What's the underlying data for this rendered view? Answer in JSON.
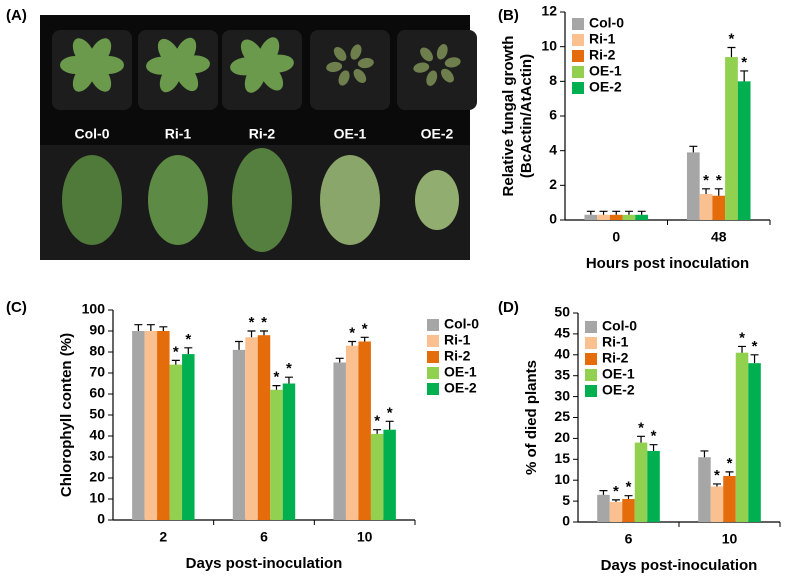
{
  "image_panel": {
    "panel_label": "(A)",
    "labels": [
      "Col-0",
      "Ri-1",
      "Ri-2",
      "OE-1",
      "OE-2"
    ]
  },
  "chart_data": [
    {
      "type": "bar",
      "panel_label": "(B)",
      "ylabel": [
        "Relative fungal growth",
        "(BcActin/AtActin)"
      ],
      "xlabel": "Hours post inoculation",
      "categories": [
        "0",
        "48"
      ],
      "ylim": [
        0,
        12
      ],
      "yticks": [
        0,
        2,
        4,
        6,
        8,
        10,
        12
      ],
      "legend": "upper left",
      "marker": "*",
      "series": [
        {
          "name": "Col-0",
          "color": "#a6a6a6",
          "values": [
            0.3,
            3.9
          ],
          "errors": [
            0.2,
            0.35
          ],
          "significant": [
            false,
            false
          ]
        },
        {
          "name": "Ri-1",
          "color": "#fac090",
          "values": [
            0.3,
            1.5
          ],
          "errors": [
            0.2,
            0.3
          ],
          "significant": [
            false,
            true
          ]
        },
        {
          "name": "Ri-2",
          "color": "#e46c0a",
          "values": [
            0.3,
            1.4
          ],
          "errors": [
            0.2,
            0.4
          ],
          "significant": [
            false,
            true
          ]
        },
        {
          "name": "OE-1",
          "color": "#92d050",
          "values": [
            0.3,
            9.4
          ],
          "errors": [
            0.2,
            0.55
          ],
          "significant": [
            false,
            true
          ]
        },
        {
          "name": "OE-2",
          "color": "#00b050",
          "values": [
            0.3,
            8.0
          ],
          "errors": [
            0.2,
            0.6
          ],
          "significant": [
            false,
            true
          ]
        }
      ]
    },
    {
      "type": "bar",
      "panel_label": "(C)",
      "ylabel": [
        "Chlorophyll conten (%)"
      ],
      "xlabel": "Days post-inoculation",
      "categories": [
        "2",
        "6",
        "10"
      ],
      "ylim": [
        0,
        100
      ],
      "yticks": [
        0,
        10,
        20,
        30,
        40,
        50,
        60,
        70,
        80,
        90,
        100
      ],
      "legend": "outside right",
      "marker": "*",
      "series": [
        {
          "name": "Col-0",
          "color": "#a6a6a6",
          "values": [
            90,
            81,
            75
          ],
          "errors": [
            3,
            4,
            2
          ],
          "significant": [
            false,
            false,
            false
          ]
        },
        {
          "name": "Ri-1",
          "color": "#fac090",
          "values": [
            90,
            87,
            83
          ],
          "errors": [
            3,
            3,
            2
          ],
          "significant": [
            false,
            true,
            true
          ]
        },
        {
          "name": "Ri-2",
          "color": "#e46c0a",
          "values": [
            90,
            88,
            85
          ],
          "errors": [
            2,
            2,
            2
          ],
          "significant": [
            false,
            true,
            true
          ]
        },
        {
          "name": "OE-1",
          "color": "#92d050",
          "values": [
            74,
            62,
            41
          ],
          "errors": [
            2,
            2,
            2
          ],
          "significant": [
            true,
            true,
            true
          ]
        },
        {
          "name": "OE-2",
          "color": "#00b050",
          "values": [
            79,
            65,
            43
          ],
          "errors": [
            3,
            3,
            4
          ],
          "significant": [
            true,
            true,
            true
          ]
        }
      ]
    },
    {
      "type": "bar",
      "panel_label": "(D)",
      "ylabel": [
        "% of died plants"
      ],
      "xlabel": "Days post-inoculation",
      "categories": [
        "6",
        "10"
      ],
      "ylim": [
        0,
        50
      ],
      "yticks": [
        0,
        5,
        10,
        15,
        20,
        25,
        30,
        35,
        40,
        45,
        50
      ],
      "legend": "upper left",
      "marker": "*",
      "series": [
        {
          "name": "Col-0",
          "color": "#a6a6a6",
          "values": [
            6.5,
            15.5
          ],
          "errors": [
            1,
            1.5
          ],
          "significant": [
            false,
            false
          ]
        },
        {
          "name": "Ri-1",
          "color": "#fac090",
          "values": [
            4.8,
            8.5
          ],
          "errors": [
            0.5,
            0.6
          ],
          "significant": [
            true,
            true
          ]
        },
        {
          "name": "Ri-2",
          "color": "#e46c0a",
          "values": [
            5.5,
            11
          ],
          "errors": [
            0.8,
            1
          ],
          "significant": [
            true,
            true
          ]
        },
        {
          "name": "OE-1",
          "color": "#92d050",
          "values": [
            19,
            40.5
          ],
          "errors": [
            1.5,
            1.5
          ],
          "significant": [
            true,
            true
          ]
        },
        {
          "name": "OE-2",
          "color": "#00b050",
          "values": [
            17,
            38
          ],
          "errors": [
            1.5,
            2
          ],
          "significant": [
            true,
            true
          ]
        }
      ]
    }
  ]
}
